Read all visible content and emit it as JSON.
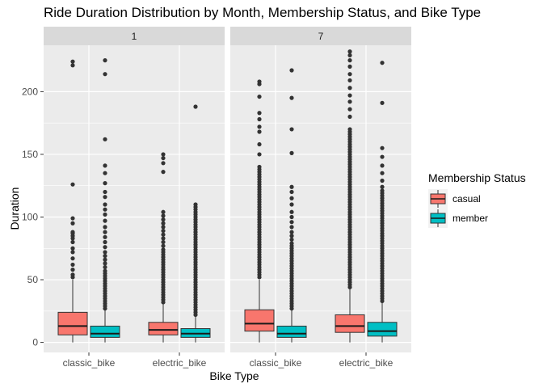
{
  "chart_data": {
    "type": "boxplot",
    "title": "Ride Duration Distribution by Month, Membership Status, and Bike Type",
    "xlabel": "Bike Type",
    "ylabel": "Duration",
    "ylim": [
      -8,
      237
    ],
    "yticks": [
      0,
      50,
      100,
      150,
      200
    ],
    "categories": [
      "classic_bike",
      "electric_bike"
    ],
    "facets": [
      "1",
      "7"
    ],
    "legend": {
      "title": "Membership Status",
      "position": "right",
      "entries": [
        {
          "name": "casual",
          "color": "#F8766D"
        },
        {
          "name": "member",
          "color": "#00BFC4"
        }
      ]
    },
    "grid": true,
    "panels": [
      {
        "facet": "1",
        "boxes": [
          {
            "category": "classic_bike",
            "series": "casual",
            "q1": 6,
            "median": 13,
            "q3": 24,
            "whisker_low": 0,
            "whisker_high": 50,
            "outliers": [
              52,
              54,
              58,
              62,
              67,
              72,
              75,
              80,
              83,
              85,
              87,
              88,
              95,
              99,
              126,
              221,
              224
            ]
          },
          {
            "category": "classic_bike",
            "series": "member",
            "q1": 4,
            "median": 7,
            "q3": 13,
            "whisker_low": 0,
            "whisker_high": 26,
            "outliers": [
              27,
              29,
              31,
              33,
              35,
              37,
              39,
              41,
              43,
              45,
              47,
              49,
              51,
              53,
              55,
              57,
              60,
              63,
              66,
              69,
              72,
              76,
              80,
              84,
              88,
              92,
              97,
              102,
              106,
              110,
              116,
              120,
              127,
              135,
              141,
              162,
              214,
              225
            ]
          },
          {
            "category": "electric_bike",
            "series": "casual",
            "q1": 6,
            "median": 10,
            "q3": 16,
            "whisker_low": 0,
            "whisker_high": 31,
            "outliers": [
              32,
              34,
              36,
              38,
              40,
              42,
              44,
              46,
              48,
              50,
              52,
              54,
              56,
              58,
              60,
              62,
              64,
              66,
              68,
              70,
              72,
              74,
              77,
              80,
              83,
              86,
              89,
              92,
              95,
              98,
              101,
              104,
              136,
              143,
              147,
              150
            ]
          },
          {
            "category": "electric_bike",
            "series": "member",
            "q1": 4,
            "median": 7,
            "q3": 11,
            "whisker_low": 0,
            "whisker_high": 21,
            "outliers": [
              22,
              24,
              26,
              28,
              30,
              32,
              34,
              36,
              38,
              40,
              42,
              44,
              46,
              48,
              50,
              52,
              54,
              56,
              58,
              60,
              62,
              64,
              66,
              68,
              70,
              72,
              74,
              76,
              78,
              80,
              82,
              84,
              86,
              88,
              90,
              92,
              94,
              96,
              98,
              100,
              102,
              104,
              106,
              108,
              110,
              188
            ]
          }
        ]
      },
      {
        "facet": "7",
        "boxes": [
          {
            "category": "classic_bike",
            "series": "casual",
            "q1": 9,
            "median": 15,
            "q3": 26,
            "whisker_low": 0,
            "whisker_high": 50,
            "outliers": [
              52,
              54,
              56,
              58,
              60,
              62,
              64,
              66,
              68,
              70,
              72,
              74,
              76,
              78,
              80,
              82,
              84,
              86,
              88,
              90,
              92,
              94,
              96,
              98,
              100,
              102,
              104,
              106,
              108,
              110,
              112,
              114,
              116,
              118,
              120,
              122,
              124,
              126,
              128,
              130,
              132,
              134,
              136,
              138,
              140,
              150,
              158,
              168,
              172,
              178,
              183,
              196,
              206,
              208
            ]
          },
          {
            "category": "classic_bike",
            "series": "member",
            "q1": 4,
            "median": 7,
            "q3": 13,
            "whisker_low": 0,
            "whisker_high": 26,
            "outliers": [
              27,
              29,
              31,
              33,
              35,
              37,
              39,
              41,
              43,
              45,
              47,
              49,
              51,
              53,
              55,
              57,
              59,
              61,
              63,
              65,
              67,
              69,
              71,
              73,
              75,
              77,
              79,
              82,
              85,
              88,
              92,
              96,
              100,
              104,
              110,
              115,
              120,
              124,
              151,
              170,
              195,
              217
            ]
          },
          {
            "category": "electric_bike",
            "series": "casual",
            "q1": 8,
            "median": 13,
            "q3": 22,
            "whisker_low": 0,
            "whisker_high": 43,
            "outliers": [
              44,
              46,
              48,
              50,
              52,
              54,
              56,
              58,
              60,
              62,
              64,
              66,
              68,
              70,
              72,
              74,
              76,
              78,
              80,
              82,
              84,
              86,
              88,
              90,
              92,
              94,
              96,
              98,
              100,
              102,
              104,
              106,
              108,
              110,
              112,
              114,
              116,
              118,
              120,
              122,
              124,
              126,
              128,
              130,
              132,
              134,
              136,
              138,
              140,
              142,
              144,
              146,
              148,
              150,
              152,
              154,
              156,
              158,
              160,
              162,
              164,
              166,
              168,
              170,
              180,
              186,
              192,
              197,
              203,
              209,
              214,
              220,
              225,
              229,
              232
            ]
          },
          {
            "category": "electric_bike",
            "series": "member",
            "q1": 5,
            "median": 9,
            "q3": 16,
            "whisker_low": 0,
            "whisker_high": 32,
            "outliers": [
              33,
              35,
              37,
              39,
              41,
              43,
              45,
              47,
              49,
              51,
              53,
              55,
              57,
              59,
              61,
              63,
              65,
              67,
              69,
              71,
              73,
              75,
              77,
              79,
              81,
              83,
              85,
              87,
              89,
              91,
              93,
              95,
              97,
              99,
              101,
              103,
              105,
              107,
              109,
              111,
              113,
              115,
              117,
              119,
              121,
              124,
              129,
              135,
              141,
              148,
              155,
              191,
              223
            ]
          }
        ]
      }
    ]
  }
}
